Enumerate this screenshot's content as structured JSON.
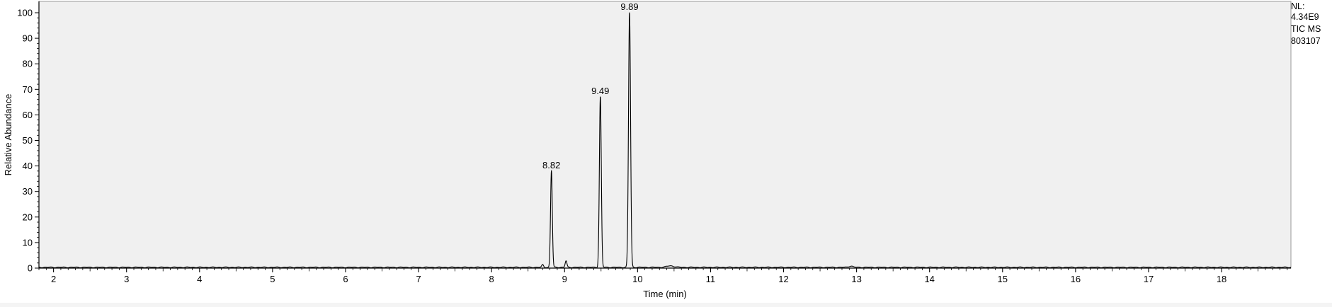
{
  "chart_data": {
    "type": "line",
    "title": "",
    "xlabel": "Time (min)",
    "ylabel": "Relative Abundance",
    "xlim": [
      1.8,
      18.95
    ],
    "ylim": [
      0,
      100
    ],
    "x_ticks": [
      2,
      3,
      4,
      5,
      6,
      7,
      8,
      9,
      10,
      11,
      12,
      13,
      14,
      15,
      16,
      17,
      18
    ],
    "y_ticks": [
      0,
      10,
      20,
      30,
      40,
      50,
      60,
      70,
      80,
      90,
      100
    ],
    "peaks": [
      {
        "x": 8.7,
        "y": 1.0
      },
      {
        "x": 8.82,
        "y": 38,
        "label": "8.82"
      },
      {
        "x": 9.02,
        "y": 2.5
      },
      {
        "x": 9.49,
        "y": 67,
        "label": "9.49"
      },
      {
        "x": 9.89,
        "y": 100,
        "label": "9.89"
      },
      {
        "x": 10.45,
        "y": 0.6
      },
      {
        "x": 12.92,
        "y": 0.5
      }
    ],
    "baseline": 0.3
  },
  "annotation": {
    "nl_label": "NL:",
    "nl_value": "4.34E9",
    "trace": "TIC  MS",
    "sample": "803107"
  },
  "colors": {
    "plot_background": "#f0f0f0",
    "trace": "#000000",
    "axis": "#000000"
  }
}
